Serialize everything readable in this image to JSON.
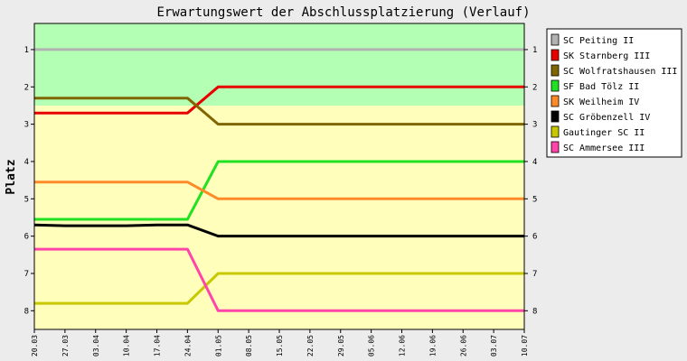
{
  "chart_data": {
    "type": "line",
    "title": "Erwartungswert der Abschlussplatzierung (Verlauf)",
    "ylabel": "Platz",
    "xlabel": "",
    "ylim": [
      0.3,
      8.5
    ],
    "y_inverted": true,
    "y_ticks": [
      1,
      2,
      3,
      4,
      5,
      6,
      7,
      8
    ],
    "x": [
      "20.03",
      "27.03",
      "03.04",
      "10.04",
      "17.04",
      "24.04",
      "01.05",
      "08.05",
      "15.05",
      "22.05",
      "29.05",
      "05.06",
      "12.06",
      "19.06",
      "26.06",
      "03.07",
      "10.07"
    ],
    "bands": [
      {
        "from": 0.3,
        "to": 2.5,
        "color": "#b3ffb3"
      },
      {
        "from": 2.5,
        "to": 8.5,
        "color": "#ffffbb"
      }
    ],
    "grid": false,
    "legend_position": "top-right",
    "series": [
      {
        "name": "SC Peiting II",
        "color": "#b2b2b2",
        "values": [
          1,
          1,
          1,
          1,
          1,
          1,
          1,
          1,
          1,
          1,
          1,
          1,
          1,
          1,
          1,
          1,
          1
        ]
      },
      {
        "name": "SK Starnberg III",
        "color": "#e80000",
        "values": [
          2.7,
          2.7,
          2.7,
          2.7,
          2.7,
          2.7,
          2,
          2,
          2,
          2,
          2,
          2,
          2,
          2,
          2,
          2,
          2
        ]
      },
      {
        "name": "SC Wolfratshausen III",
        "color": "#806600",
        "values": [
          2.3,
          2.3,
          2.3,
          2.3,
          2.3,
          2.3,
          3,
          3,
          3,
          3,
          3,
          3,
          3,
          3,
          3,
          3,
          3
        ]
      },
      {
        "name": "SF Bad Tölz II",
        "color": "#22e022",
        "values": [
          5.55,
          5.55,
          5.55,
          5.55,
          5.55,
          5.55,
          4,
          4,
          4,
          4,
          4,
          4,
          4,
          4,
          4,
          4,
          4
        ]
      },
      {
        "name": "SK Weilheim IV",
        "color": "#ff8a2a",
        "values": [
          4.55,
          4.55,
          4.55,
          4.55,
          4.55,
          4.55,
          5,
          5,
          5,
          5,
          5,
          5,
          5,
          5,
          5,
          5,
          5
        ]
      },
      {
        "name": "SC Gröbenzell IV",
        "color": "#000000",
        "values": [
          5.7,
          5.72,
          5.72,
          5.72,
          5.7,
          5.7,
          6,
          6,
          6,
          6,
          6,
          6,
          6,
          6,
          6,
          6,
          6
        ]
      },
      {
        "name": "Gautinger SC II",
        "color": "#c8c800",
        "values": [
          7.8,
          7.8,
          7.8,
          7.8,
          7.8,
          7.8,
          7,
          7,
          7,
          7,
          7,
          7,
          7,
          7,
          7,
          7,
          7
        ]
      },
      {
        "name": "SC Ammersee III",
        "color": "#ff44aa",
        "values": [
          6.35,
          6.35,
          6.35,
          6.35,
          6.35,
          6.35,
          8,
          8,
          8,
          8,
          8,
          8,
          8,
          8,
          8,
          8,
          8
        ]
      }
    ]
  }
}
